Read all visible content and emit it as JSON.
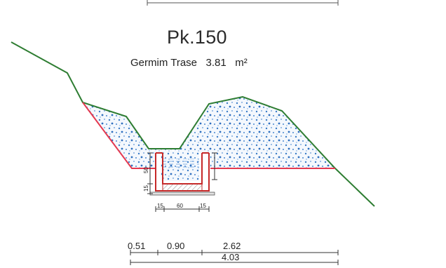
{
  "section": {
    "title": "Pk.150",
    "area_label": "Germim Trase",
    "area_value": "3.81",
    "area_unit": "m²"
  },
  "detail_dims": {
    "left_wall": "15",
    "channel_width": "60",
    "right_wall": "15",
    "side_upper": "50",
    "side_lower": "15"
  },
  "bottom_dims": {
    "seg1": "0.51",
    "seg2": "0.90",
    "seg3": "2.62",
    "total": "4.03"
  },
  "colors": {
    "terrain_line": "#2e7d32",
    "excavation_line": "#e53950",
    "fill_dots": "#3b7dc8",
    "channel": "#c62828",
    "dimension": "#333333"
  }
}
